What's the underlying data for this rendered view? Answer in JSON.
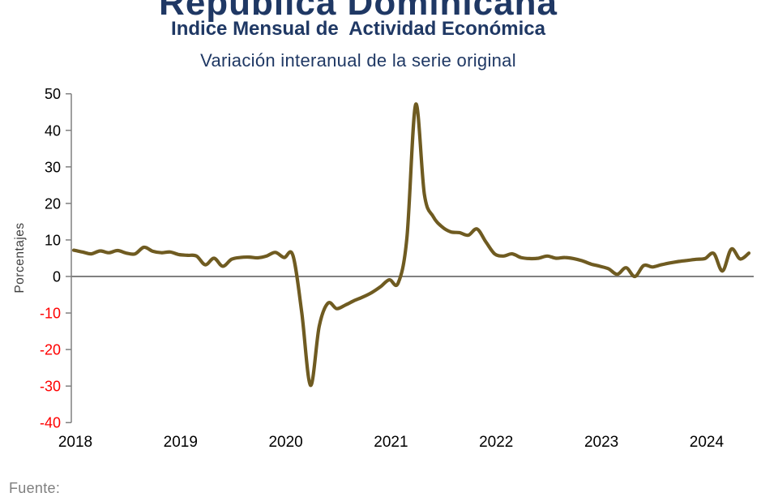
{
  "header": {
    "title": "República Dominicana",
    "subtitle": "Indice Mensual de  Actividad Económica",
    "tertiary_title": "Variación interanual de la serie original",
    "title_color": "#1F3864"
  },
  "footer": {
    "source_label": "Fuente:",
    "source_color": "#7F7F7F"
  },
  "chart_data": {
    "type": "line",
    "title": "Indice Mensual de Actividad Económica — Variación interanual de la serie original",
    "ylabel": "Porcentajes",
    "ylabel_color": "#3F3F3F",
    "ylim": [
      -40,
      50
    ],
    "ytick_step": 10,
    "yticks": [
      50,
      40,
      30,
      20,
      10,
      0,
      -10,
      -20,
      -30,
      -40
    ],
    "positive_tick_color": "#000000",
    "negative_tick_color": "#FF0000",
    "year_labels": [
      "2018",
      "2019",
      "2020",
      "2021",
      "2022",
      "2023",
      "2024"
    ],
    "year_label_color": "#000000",
    "x_start": "2018-01",
    "x_end": "2024-06",
    "grid": false,
    "legend": "none",
    "line_color": "#6F5B21",
    "axis_color": "#808080",
    "zero_line_color": "#808080",
    "series": [
      {
        "name": "Variación interanual de la serie original (%)",
        "monthly_values": [
          7.2,
          6.7,
          6.2,
          7.0,
          6.5,
          7.1,
          6.4,
          6.2,
          8.0,
          6.9,
          6.5,
          6.7,
          6.0,
          5.8,
          5.6,
          3.2,
          5.0,
          2.8,
          4.7,
          5.2,
          5.3,
          5.1,
          5.6,
          6.6,
          5.2,
          5.8,
          -9.8,
          -29.8,
          -13.6,
          -7.3,
          -8.8,
          -7.8,
          -6.6,
          -5.6,
          -4.4,
          -2.8,
          -0.9,
          -1.8,
          10.6,
          47.1,
          22.4,
          16.4,
          13.6,
          12.2,
          12.0,
          11.3,
          13.0,
          9.5,
          6.2,
          5.6,
          6.2,
          5.2,
          4.9,
          5.0,
          5.6,
          5.0,
          5.2,
          4.9,
          4.3,
          3.4,
          2.8,
          2.1,
          0.6,
          2.4,
          0.0,
          3.0,
          2.6,
          3.2,
          3.7,
          4.1,
          4.4,
          4.7,
          4.9,
          6.3,
          1.5,
          7.5,
          4.8,
          6.4
        ]
      }
    ]
  }
}
